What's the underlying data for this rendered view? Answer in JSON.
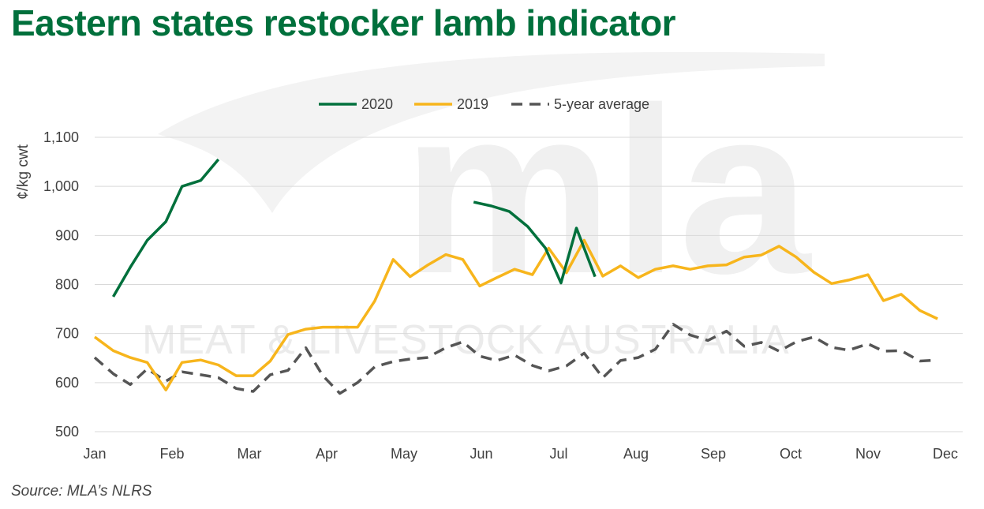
{
  "title": "Eastern states restocker lamb indicator",
  "source": "Source: MLA’s NLRS",
  "watermark": {
    "logo": "mla",
    "text": "MEAT & LIVESTOCK AUSTRALIA"
  },
  "colors": {
    "title": "#00703c",
    "s2020": "#00703c",
    "s2019": "#f7b51c",
    "avg": "#555555",
    "grid": "#d9d9d9"
  },
  "chart_data": {
    "type": "line",
    "title": "Eastern states restocker lamb indicator",
    "xlabel": "",
    "ylabel": "¢/kg cwt",
    "ylim": [
      500,
      1100
    ],
    "yticks": [
      "500",
      "600",
      "700",
      "800",
      "900",
      "1,000",
      "1,100"
    ],
    "ytick_values": [
      500,
      600,
      700,
      800,
      900,
      1000,
      1100
    ],
    "xlim": [
      0,
      11.3
    ],
    "categories": [
      "Jan",
      "Feb",
      "Mar",
      "Apr",
      "May",
      "Jun",
      "Jul",
      "Aug",
      "Sep",
      "Oct",
      "Nov",
      "Dec"
    ],
    "grid": "horizontal",
    "legend_position": "top",
    "series": [
      {
        "name": "2020",
        "style": "solid",
        "segments": [
          [
            [
              0.24,
              775
            ],
            [
              0.46,
              835
            ],
            [
              0.68,
              890
            ],
            [
              0.92,
              928
            ],
            [
              1.13,
              1000
            ],
            [
              1.37,
              1012
            ],
            [
              1.6,
              1055
            ]
          ],
          [
            [
              4.9,
              968
            ],
            [
              5.13,
              960
            ],
            [
              5.36,
              949
            ],
            [
              5.6,
              918
            ],
            [
              5.83,
              874
            ],
            [
              6.03,
              803
            ],
            [
              6.23,
              915
            ],
            [
              6.47,
              816
            ]
          ]
        ]
      },
      {
        "name": "2019",
        "style": "solid",
        "segments": [
          [
            [
              0,
              693
            ],
            [
              0.24,
              665
            ],
            [
              0.46,
              651
            ],
            [
              0.68,
              641
            ],
            [
              0.92,
              585
            ],
            [
              1.13,
              641
            ],
            [
              1.37,
              646
            ],
            [
              1.6,
              636
            ],
            [
              1.83,
              614
            ],
            [
              2.05,
              614
            ],
            [
              2.27,
              644
            ],
            [
              2.5,
              698
            ],
            [
              2.73,
              709
            ],
            [
              2.95,
              713
            ],
            [
              3.17,
              713
            ],
            [
              3.4,
              713
            ],
            [
              3.62,
              766
            ],
            [
              3.86,
              851
            ],
            [
              4.08,
              816
            ],
            [
              4.3,
              839
            ],
            [
              4.54,
              861
            ],
            [
              4.76,
              851
            ],
            [
              4.98,
              797
            ],
            [
              5.2,
              814
            ],
            [
              5.43,
              831
            ],
            [
              5.66,
              820
            ],
            [
              5.87,
              874
            ],
            [
              6.1,
              824
            ],
            [
              6.33,
              890
            ],
            [
              6.57,
              817
            ],
            [
              6.8,
              838
            ],
            [
              7.03,
              814
            ],
            [
              7.25,
              831
            ],
            [
              7.48,
              838
            ],
            [
              7.7,
              831
            ],
            [
              7.93,
              838
            ],
            [
              8.17,
              840
            ],
            [
              8.4,
              856
            ],
            [
              8.62,
              860
            ],
            [
              8.85,
              878
            ],
            [
              9.07,
              856
            ],
            [
              9.3,
              825
            ],
            [
              9.53,
              802
            ],
            [
              9.75,
              809
            ],
            [
              10.0,
              820
            ],
            [
              10.2,
              767
            ],
            [
              10.43,
              780
            ],
            [
              10.67,
              747
            ],
            [
              10.9,
              730
            ]
          ]
        ]
      },
      {
        "name": "5-year average",
        "style": "dashed",
        "segments": [
          [
            [
              0,
              651
            ],
            [
              0.24,
              618
            ],
            [
              0.46,
              596
            ],
            [
              0.68,
              628
            ],
            [
              0.92,
              603
            ],
            [
              1.13,
              622
            ],
            [
              1.37,
              616
            ],
            [
              1.6,
              610
            ],
            [
              1.83,
              588
            ],
            [
              2.05,
              582
            ],
            [
              2.27,
              616
            ],
            [
              2.5,
              625
            ],
            [
              2.73,
              671
            ],
            [
              2.95,
              614
            ],
            [
              3.17,
              578
            ],
            [
              3.4,
              600
            ],
            [
              3.62,
              632
            ],
            [
              3.86,
              643
            ],
            [
              4.08,
              648
            ],
            [
              4.3,
              651
            ],
            [
              4.54,
              671
            ],
            [
              4.76,
              683
            ],
            [
              4.98,
              654
            ],
            [
              5.2,
              645
            ],
            [
              5.43,
              656
            ],
            [
              5.66,
              635
            ],
            [
              5.87,
              624
            ],
            [
              6.1,
              634
            ],
            [
              6.33,
              660
            ],
            [
              6.57,
              610
            ],
            [
              6.8,
              645
            ],
            [
              7.03,
              651
            ],
            [
              7.25,
              668
            ],
            [
              7.48,
              719
            ],
            [
              7.7,
              697
            ],
            [
              7.93,
              686
            ],
            [
              8.17,
              705
            ],
            [
              8.4,
              674
            ],
            [
              8.62,
              682
            ],
            [
              8.85,
              664
            ],
            [
              9.07,
              683
            ],
            [
              9.3,
              693
            ],
            [
              9.53,
              672
            ],
            [
              9.75,
              666
            ],
            [
              10.0,
              679
            ],
            [
              10.2,
              664
            ],
            [
              10.43,
              665
            ],
            [
              10.67,
              644
            ],
            [
              10.9,
              646
            ]
          ]
        ]
      }
    ]
  }
}
